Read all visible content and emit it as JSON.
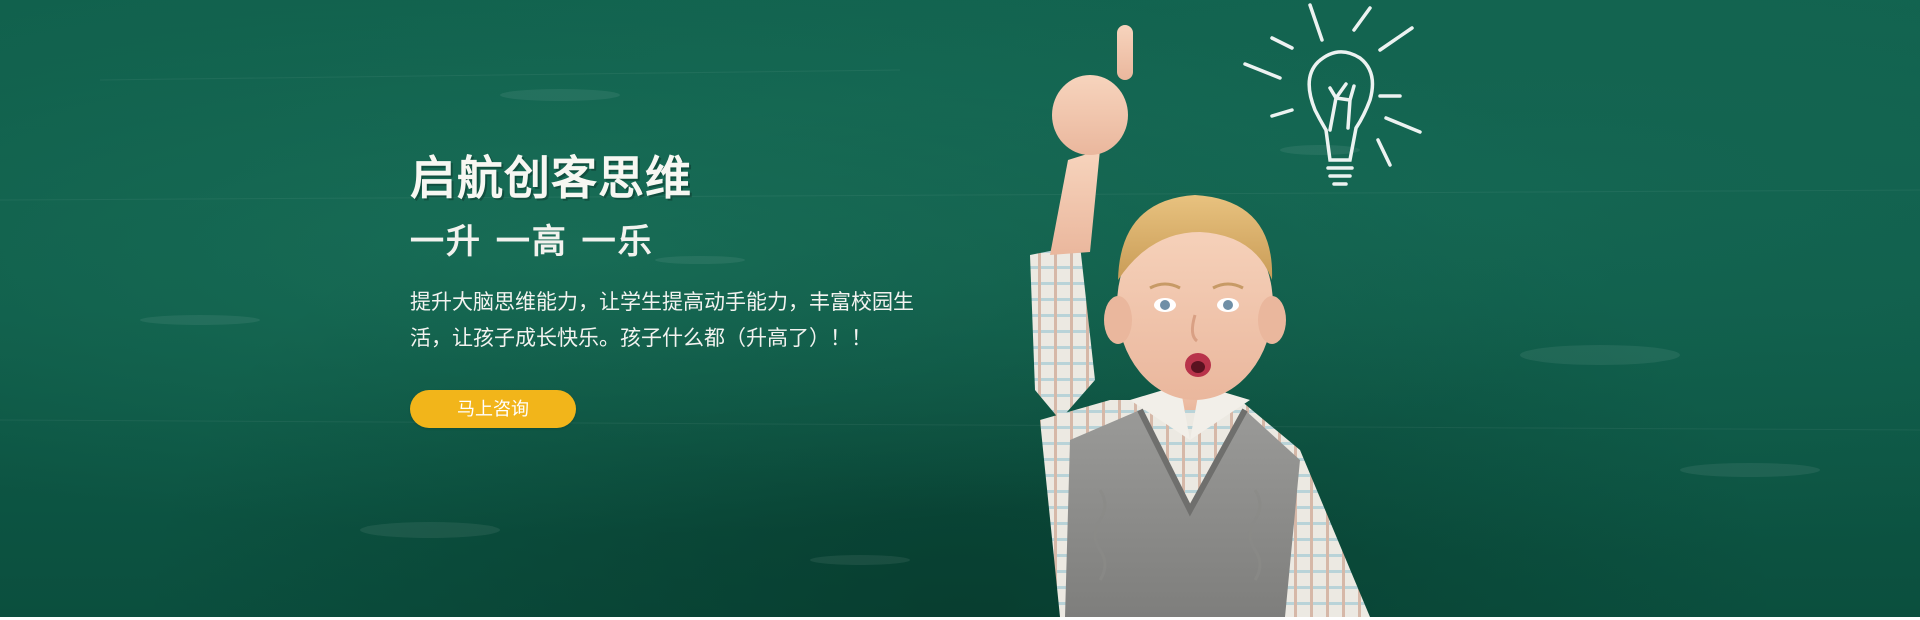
{
  "banner": {
    "title": "启航创客思维",
    "subtitle": "一升 一高 一乐",
    "description": "提升大脑思维能力，让学生提高动手能力，丰富校园生活，让孩子成长快乐。孩子什么都（升高了）！！",
    "cta_label": "马上咨询"
  },
  "colors": {
    "chalkboard": "#0f5c49",
    "cta_button": "#f2b51a",
    "text": "#ffffff"
  },
  "images": {
    "boy": "boy-pointing-up-photo",
    "bulb": "chalk-lightbulb-icon"
  }
}
